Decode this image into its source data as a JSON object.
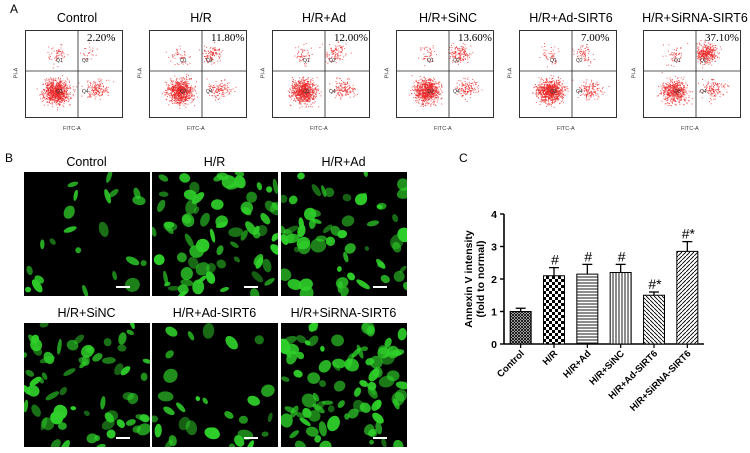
{
  "panel_labels": {
    "a": "A",
    "b": "B",
    "c": "C"
  },
  "flow": {
    "axis_y": "PI-A",
    "axis_x": "FITC-A",
    "quadrants": [
      "Q1",
      "Q2",
      "Q3",
      "Q4"
    ],
    "plots": [
      {
        "title": "Control",
        "percent": "2.20%"
      },
      {
        "title": "H/R",
        "percent": "11.80%"
      },
      {
        "title": "H/R+Ad",
        "percent": "12.00%"
      },
      {
        "title": "H/R+SiNC",
        "percent": "13.60%"
      },
      {
        "title": "H/R+Ad-SIRT6",
        "percent": "7.00%"
      },
      {
        "title": "H/R+SiRNA-SIRT6",
        "percent": "37.10%"
      }
    ]
  },
  "fluor": {
    "titles": [
      "Control",
      "H/R",
      "H/R+Ad",
      "H/R+SiNC",
      "H/R+Ad-SIRT6",
      "H/R+SiRNA-SIRT6"
    ],
    "colors": {
      "cell": "#2fd02a",
      "bg": "#000000"
    }
  },
  "chart_data": {
    "type": "bar",
    "categories": [
      "Control",
      "H/R",
      "H/R+Ad",
      "H/R+SiNC",
      "H/R+Ad-SIRT6",
      "H/R+SiRNA-SIRT6"
    ],
    "values": [
      1.0,
      2.1,
      2.15,
      2.2,
      1.5,
      2.85
    ],
    "errors": [
      0.1,
      0.25,
      0.3,
      0.25,
      0.1,
      0.3
    ],
    "annotations": [
      "",
      "#",
      "#",
      "#",
      "#*",
      "#*"
    ],
    "ylabel_line1": "Annexin V intensity",
    "ylabel_line2": "(fold to normal)",
    "ylim": [
      0,
      4
    ],
    "yticks": [
      "0",
      "1",
      "2",
      "3",
      "4"
    ],
    "patterns": [
      "cross-dense",
      "checker",
      "horizontal",
      "vertical",
      "diag-back",
      "diag"
    ]
  }
}
